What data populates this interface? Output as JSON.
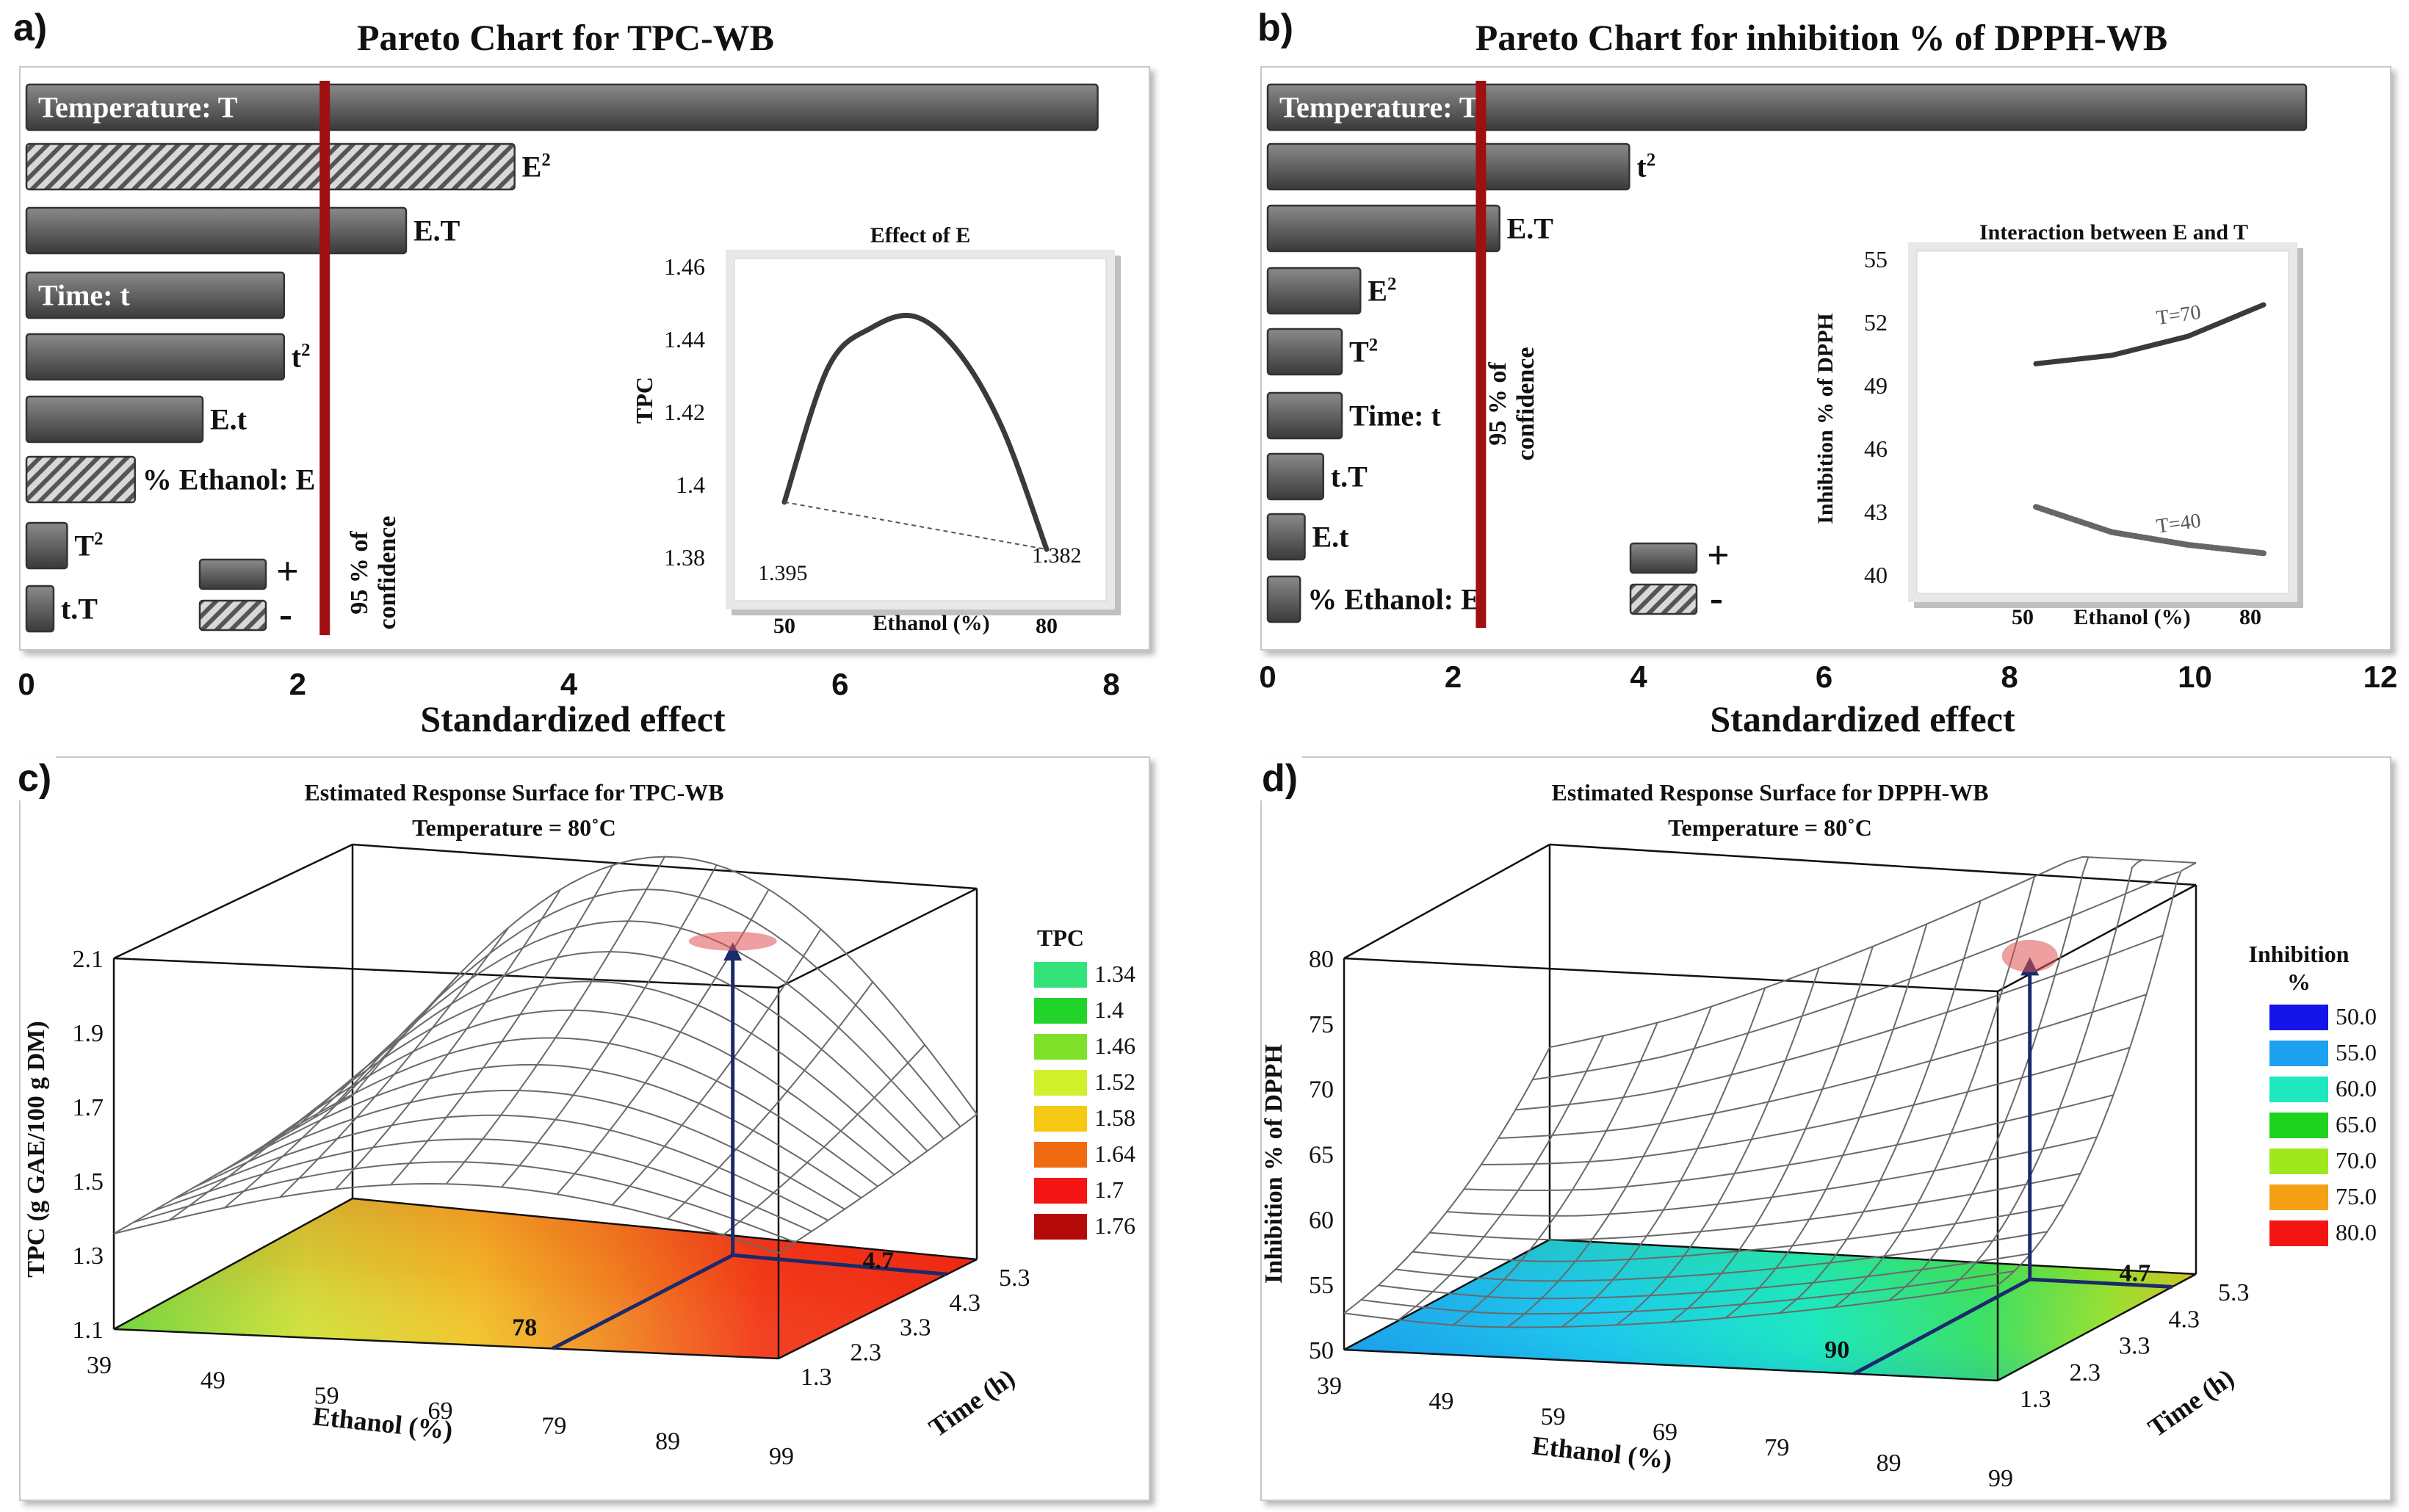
{
  "panel_a": {
    "letter": "a)",
    "title": "Pareto Chart for TPC-WB",
    "xlabel": "Standardized effect",
    "xticks": [
      "0",
      "2",
      "4",
      "6",
      "8"
    ],
    "confidence_label": [
      "95 % of",
      "confidence"
    ],
    "legend": {
      "positive": "+",
      "negative": "-"
    },
    "inset": {
      "title": "Effect of E",
      "xlabel": "Ethanol (%)",
      "ylabel": "TPC",
      "xticks": [
        "50",
        "80"
      ],
      "yticks": [
        "1.46",
        "1.44",
        "1.42",
        "1.4",
        "1.38"
      ],
      "left_value": "1.395",
      "right_value": "1.382"
    }
  },
  "panel_b": {
    "letter": "b)",
    "title": "Pareto Chart for inhibition % of DPPH-WB",
    "xlabel": "Standardized effect",
    "xticks": [
      "0",
      "2",
      "4",
      "6",
      "8",
      "10",
      "12"
    ],
    "confidence_label": [
      "95 % of",
      "confidence"
    ],
    "legend": {
      "positive": "+",
      "negative": "-"
    },
    "inset": {
      "title": "Interaction between E and T",
      "xlabel": "Ethanol (%)",
      "ylabel": "Inhibition % of DPPH",
      "xticks": [
        "50",
        "80"
      ],
      "yticks": [
        "55",
        "52",
        "49",
        "46",
        "43",
        "40"
      ],
      "series": [
        "T=70",
        "T=40"
      ]
    }
  },
  "panel_c": {
    "letter": "c)",
    "title1": "Estimated Response Surface for TPC-WB",
    "title2": "Temperature = 80˚C",
    "zlabel": "TPC (g GAE/100 g DM)",
    "zticks": [
      "2.1",
      "1.9",
      "1.7",
      "1.5",
      "1.3",
      "1.1"
    ],
    "xlabel": "Ethanol (%)",
    "xticks": [
      "39",
      "49",
      "59",
      "69",
      "79",
      "89",
      "99"
    ],
    "ylabel": "Time (h)",
    "yticks": [
      "1.3",
      "2.3",
      "3.3",
      "4.3",
      "5.3"
    ],
    "opt_ethanol": "78",
    "opt_time": "4.7",
    "legend_title": "TPC",
    "legend": [
      {
        "label": "1.34",
        "color": "#33e37a"
      },
      {
        "label": "1.4",
        "color": "#22d42a"
      },
      {
        "label": "1.46",
        "color": "#7fe02a"
      },
      {
        "label": "1.52",
        "color": "#cff02a"
      },
      {
        "label": "1.58",
        "color": "#f5c814"
      },
      {
        "label": "1.64",
        "color": "#f06a10"
      },
      {
        "label": "1.7",
        "color": "#f51414"
      },
      {
        "label": "1.76",
        "color": "#b50a0a"
      }
    ]
  },
  "panel_d": {
    "letter": "d)",
    "title1": "Estimated Response Surface for DPPH-WB",
    "title2": "Temperature = 80˚C",
    "zlabel": "Inhibition % of DPPH",
    "zticks": [
      "80",
      "75",
      "70",
      "65",
      "60",
      "55",
      "50"
    ],
    "xlabel": "Ethanol (%)",
    "xticks": [
      "39",
      "49",
      "59",
      "69",
      "79",
      "89",
      "99"
    ],
    "ylabel": "Time (h)",
    "yticks": [
      "1.3",
      "2.3",
      "3.3",
      "4.3",
      "5.3"
    ],
    "opt_ethanol": "90",
    "opt_time": "4.7",
    "legend_title": "Inhibition",
    "legend_title2": "%",
    "legend": [
      {
        "label": "50.0",
        "color": "#1414e8"
      },
      {
        "label": "55.0",
        "color": "#1ea0f0"
      },
      {
        "label": "60.0",
        "color": "#1ee8c0"
      },
      {
        "label": "65.0",
        "color": "#1ed21e"
      },
      {
        "label": "70.0",
        "color": "#a0e81e"
      },
      {
        "label": "75.0",
        "color": "#f5a014"
      },
      {
        "label": "80.0",
        "color": "#f51414"
      }
    ]
  },
  "chart_data": [
    {
      "type": "bar",
      "orientation": "horizontal",
      "title": "Pareto Chart for TPC-WB",
      "xlabel": "Standardized effect",
      "xlim": [
        0,
        8
      ],
      "reference_line": 2.2,
      "categories": [
        "Temperature: T",
        "E²",
        "E.T",
        "Time: t",
        "t²",
        "E.t",
        "% Ethanol: E",
        "T²",
        "t.T"
      ],
      "values": [
        7.9,
        3.6,
        2.8,
        1.9,
        1.9,
        1.3,
        0.8,
        0.3,
        0.2
      ],
      "signs": [
        "+",
        "-",
        "+",
        "+",
        "+",
        "+",
        "-",
        "+",
        "+"
      ]
    },
    {
      "type": "line",
      "title": "Effect of E",
      "xlabel": "Ethanol (%)",
      "ylabel": "TPC",
      "x": [
        50,
        55,
        60,
        65,
        70,
        75,
        80
      ],
      "y": [
        1.395,
        1.432,
        1.443,
        1.446,
        1.436,
        1.415,
        1.382
      ],
      "ylim": [
        1.37,
        1.46
      ]
    },
    {
      "type": "bar",
      "orientation": "horizontal",
      "title": "Pareto Chart for inhibition % of DPPH-WB",
      "xlabel": "Standardized effect",
      "xlim": [
        0,
        12
      ],
      "reference_line": 2.3,
      "categories": [
        "Temperature: T",
        "t²",
        "E.T",
        "E²",
        "T²",
        "Time: t",
        "t.T",
        "E.t",
        "% Ethanol: E"
      ],
      "values": [
        11.2,
        3.9,
        2.5,
        1.0,
        0.8,
        0.8,
        0.6,
        0.4,
        0.35
      ],
      "signs": [
        "+",
        "+",
        "+",
        "+",
        "+",
        "+",
        "+",
        "+",
        "+"
      ]
    },
    {
      "type": "line",
      "title": "Interaction between E and T",
      "xlabel": "Ethanol (%)",
      "ylabel": "Inhibition % of DPPH",
      "ylim": [
        40,
        55
      ],
      "series": [
        {
          "name": "T=70",
          "x": [
            50,
            60,
            70,
            80
          ],
          "y": [
            50.0,
            50.4,
            51.3,
            52.8
          ]
        },
        {
          "name": "T=40",
          "x": [
            50,
            60,
            70,
            80
          ],
          "y": [
            43.2,
            42.0,
            41.4,
            41.0
          ]
        }
      ]
    },
    {
      "type": "surface",
      "title": "Estimated Response Surface for TPC-WB",
      "subtitle": "Temperature = 80˚C",
      "xlabel": "Ethanol (%)",
      "xlim": [
        39,
        99
      ],
      "ylabel": "Time (h)",
      "ylim": [
        1.3,
        5.3
      ],
      "zlabel": "TPC (g GAE/100 g DM)",
      "zlim": [
        1.1,
        2.1
      ],
      "optimum": {
        "ethanol": 78,
        "time": 4.7
      }
    },
    {
      "type": "surface",
      "title": "Estimated Response Surface for DPPH-WB",
      "subtitle": "Temperature = 80˚C",
      "xlabel": "Ethanol (%)",
      "xlim": [
        39,
        99
      ],
      "ylabel": "Time (h)",
      "ylim": [
        1.3,
        5.3
      ],
      "zlabel": "Inhibition % of DPPH",
      "zlim": [
        50,
        80
      ],
      "optimum": {
        "ethanol": 90,
        "time": 4.7
      }
    }
  ]
}
